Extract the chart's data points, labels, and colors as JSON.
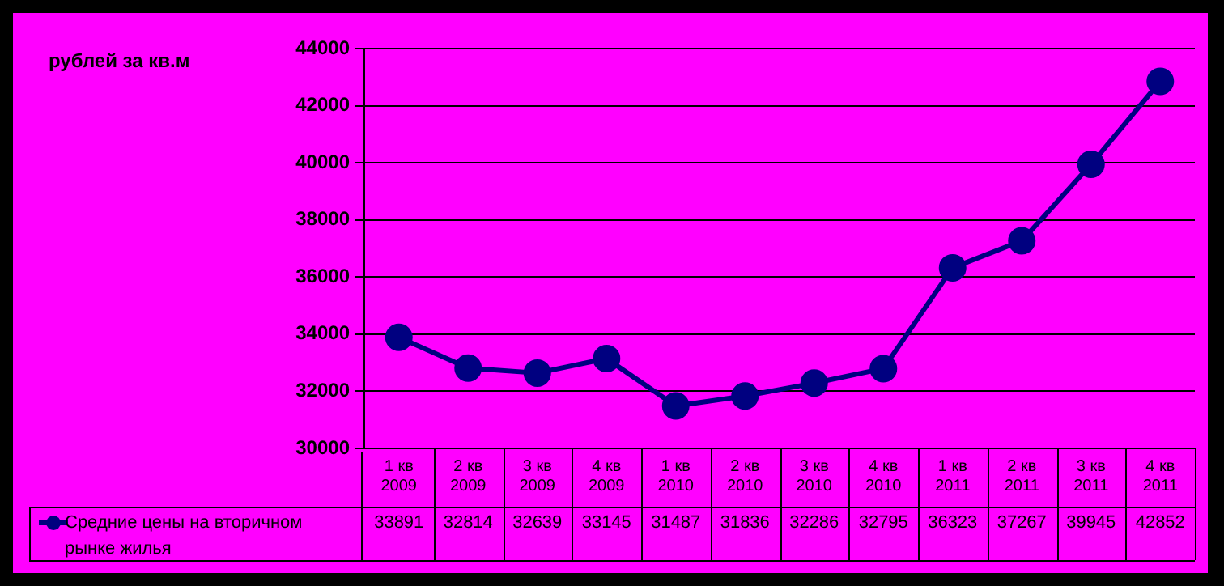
{
  "chart_data": {
    "type": "line",
    "annotations": [
      "рублей за кв.м"
    ],
    "categories": [
      "1 кв 2009",
      "2 кв 2009",
      "3 кв 2009",
      "4 кв 2009",
      "1 кв 2010",
      "2 кв 2010",
      "3 кв 2010",
      "4 кв 2010",
      "1 кв 2011",
      "2 кв 2011",
      "3 кв 2011",
      "4 кв 2011"
    ],
    "series": [
      {
        "name": "Средние цены на вторичном рынке жилья",
        "color": "#000080",
        "values": [
          33891,
          32814,
          32639,
          33145,
          31487,
          31836,
          32286,
          32795,
          36323,
          37267,
          39945,
          42852
        ]
      }
    ],
    "ylim": [
      30000,
      44000
    ],
    "yticks": [
      30000,
      32000,
      34000,
      36000,
      38000,
      40000,
      42000,
      44000
    ],
    "grid": "y",
    "legend": "bottom left",
    "marker": "circle",
    "line_style": "solid",
    "data_labels": true
  }
}
